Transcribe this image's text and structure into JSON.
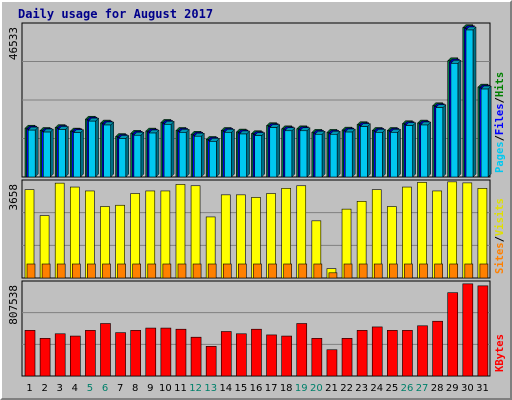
{
  "chart_data": {
    "type": "bar",
    "title": "Daily usage for August 2017",
    "categories": [
      "1",
      "2",
      "3",
      "4",
      "5",
      "6",
      "7",
      "8",
      "9",
      "10",
      "11",
      "12",
      "13",
      "14",
      "15",
      "16",
      "17",
      "18",
      "19",
      "20",
      "21",
      "22",
      "23",
      "24",
      "25",
      "26",
      "27",
      "28",
      "29",
      "30",
      "31"
    ],
    "weekend_days": [
      "5",
      "6",
      "12",
      "13",
      "19",
      "20",
      "26",
      "27"
    ],
    "panels": [
      {
        "name": "pages-files-hits",
        "axis_label": "46533",
        "ymax": 46533,
        "right_labels": [
          {
            "text": "Pages",
            "color": "#00c8f0"
          },
          {
            "text": "/",
            "color": "#000000"
          },
          {
            "text": "Files",
            "color": "#0000ff"
          },
          {
            "text": "/",
            "color": "#000000"
          },
          {
            "text": "Hits",
            "color": "#008000"
          }
        ],
        "series": [
          {
            "name": "Hits",
            "color": "#008040",
            "values": [
              15200,
              14500,
              15400,
              14300,
              18000,
              16800,
              12600,
              13600,
              14300,
              17000,
              14500,
              13300,
              11700,
              14500,
              14000,
              13500,
              16000,
              15000,
              15000,
              13900,
              13900,
              14600,
              16300,
              14500,
              14500,
              16600,
              16800,
              22200,
              36200,
              46533,
              28000
            ]
          },
          {
            "name": "Files",
            "color": "#0000ff",
            "values": [
              14900,
              14200,
              15100,
              14100,
              17700,
              16500,
              12300,
              13300,
              14000,
              16700,
              14200,
              13000,
              11400,
              14200,
              13700,
              13200,
              15700,
              14700,
              14700,
              13600,
              13600,
              14300,
              16000,
              14200,
              14200,
              16300,
              16500,
              21900,
              35800,
              46200,
              27700
            ]
          },
          {
            "name": "Pages",
            "color": "#00c8f0",
            "values": [
              14600,
              14000,
              14800,
              13800,
              17400,
              16200,
              12000,
              13000,
              13700,
              16400,
              13900,
              12700,
              11100,
              13900,
              13400,
              12900,
              15400,
              14400,
              14400,
              13300,
              13300,
              14000,
              15700,
              13900,
              13900,
              16000,
              16200,
              21600,
              35400,
              45800,
              27400
            ]
          }
        ]
      },
      {
        "name": "sites-visits",
        "axis_label": "3658",
        "ymax": 3658,
        "right_labels": [
          {
            "text": "Sites",
            "color": "#ff8000"
          },
          {
            "text": "/",
            "color": "#000000"
          },
          {
            "text": "Visits",
            "color": "#e0e000"
          }
        ],
        "series": [
          {
            "name": "Visits",
            "color": "#ffff00",
            "values": [
              3400,
              2400,
              3650,
              3500,
              3350,
              2750,
              2800,
              3250,
              3350,
              3350,
              3600,
              3550,
              2350,
              3200,
              3200,
              3100,
              3250,
              3450,
              3550,
              2200,
              360,
              2650,
              2950,
              3400,
              2750,
              3500,
              3680,
              3350,
              3700,
              3660,
              3450
            ]
          },
          {
            "name": "Sites",
            "color": "#ff8000",
            "values": [
              600,
              600,
              600,
              600,
              600,
              600,
              600,
              600,
              600,
              600,
              600,
              600,
              600,
              600,
              600,
              600,
              600,
              600,
              600,
              600,
              200,
              600,
              600,
              600,
              600,
              600,
              600,
              600,
              600,
              600,
              600
            ]
          }
        ]
      },
      {
        "name": "kbytes",
        "axis_label": "807538",
        "ymax": 807538,
        "right_labels": [
          {
            "text": "KBytes",
            "color": "#ff0000"
          }
        ],
        "series": [
          {
            "name": "KBytes",
            "color": "#ff0000",
            "values": [
              400000,
              330000,
              370000,
              350000,
              400000,
              460000,
              380000,
              400000,
              420000,
              420000,
              410000,
              340000,
              260000,
              390000,
              370000,
              410000,
              360000,
              350000,
              460000,
              330000,
              230000,
              330000,
              400000,
              430000,
              400000,
              400000,
              440000,
              480000,
              730000,
              807538,
              790000
            ]
          }
        ]
      }
    ]
  }
}
